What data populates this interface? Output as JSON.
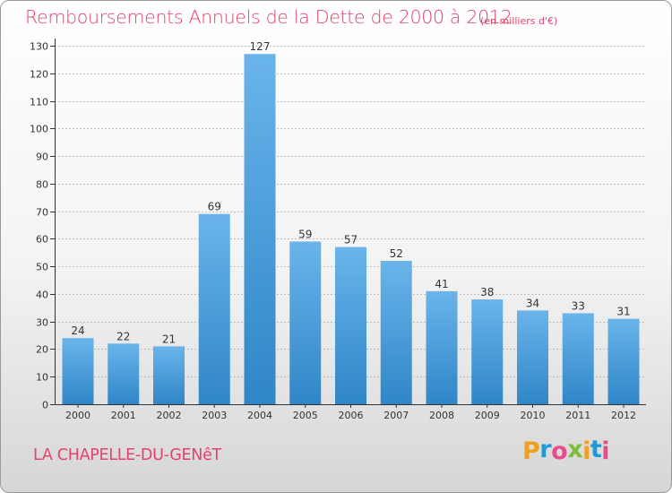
{
  "header": {
    "title": "Remboursements Annuels de la Dette de 2000 à 2012",
    "unit": "(en milliers d'€)"
  },
  "footer": {
    "commune": "LA CHAPELLE-DU-GENêT",
    "logo_letters": [
      "P",
      "r",
      "o",
      "x",
      "i",
      "t",
      "i"
    ],
    "logo_colors": [
      "#f0a020",
      "#1e9ad6",
      "#e84b8a",
      "#7dbb3b",
      "#f0a020",
      "#1e9ad6",
      "#e84b8a"
    ]
  },
  "colors": {
    "bar_light": "#6ab4ea",
    "bar_dark": "#2f86c8",
    "axis": "#333333",
    "grid": "#bdbdbd",
    "text": "#333333"
  },
  "chart_data": {
    "type": "bar",
    "title": "Remboursements Annuels de la Dette de 2000 à 2012",
    "subtitle": "(en milliers d'€)",
    "categories": [
      "2000",
      "2001",
      "2002",
      "2003",
      "2004",
      "2005",
      "2006",
      "2007",
      "2008",
      "2009",
      "2010",
      "2011",
      "2012"
    ],
    "values": [
      24,
      22,
      21,
      69,
      127,
      59,
      57,
      52,
      41,
      38,
      34,
      33,
      31
    ],
    "ylim": [
      0,
      130
    ],
    "yticks": [
      0,
      10,
      20,
      30,
      40,
      50,
      60,
      70,
      80,
      90,
      100,
      110,
      120,
      130
    ],
    "grid": "horizontal",
    "legend": "none"
  }
}
